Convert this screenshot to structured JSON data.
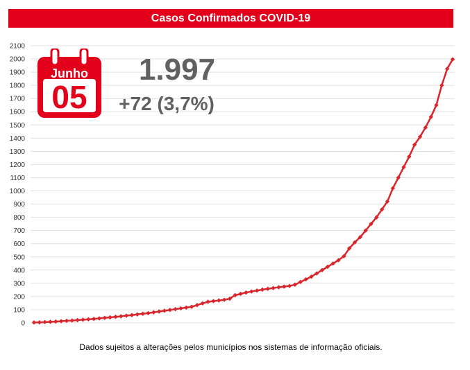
{
  "chart_data": {
    "type": "line",
    "title": "Casos Confirmados COVID-19",
    "ylim": [
      0,
      2100
    ],
    "yticks": [
      0,
      100,
      200,
      300,
      400,
      500,
      600,
      700,
      800,
      900,
      1000,
      1100,
      1200,
      1300,
      1400,
      1500,
      1600,
      1700,
      1800,
      1900,
      2000,
      2100
    ],
    "grid": true,
    "color": "#d9262d",
    "series": [
      {
        "values": [
          3,
          4,
          6,
          8,
          10,
          13,
          16,
          18,
          21,
          24,
          27,
          30,
          34,
          38,
          42,
          46,
          50,
          55,
          59,
          64,
          69,
          74,
          80,
          86,
          92,
          98,
          104,
          110,
          116,
          122,
          135,
          148,
          160,
          165,
          170,
          175,
          183,
          210,
          220,
          230,
          238,
          245,
          252,
          258,
          264,
          270,
          275,
          280,
          290,
          310,
          330,
          350,
          375,
          400,
          425,
          450,
          475,
          505,
          565,
          610,
          650,
          700,
          750,
          800,
          860,
          920,
          1020,
          1100,
          1180,
          1260,
          1350,
          1410,
          1480,
          1560,
          1650,
          1800,
          1925,
          1997
        ]
      }
    ]
  },
  "banner": {
    "title": "Casos Confirmados COVID-19"
  },
  "calendar": {
    "month": "Junho",
    "day": "05"
  },
  "stats": {
    "total": "1.997",
    "delta": "+72 (3,7%)"
  },
  "footnote": "Dados sujeitos a alterações pelos municípios nos sistemas de informação oficiais."
}
